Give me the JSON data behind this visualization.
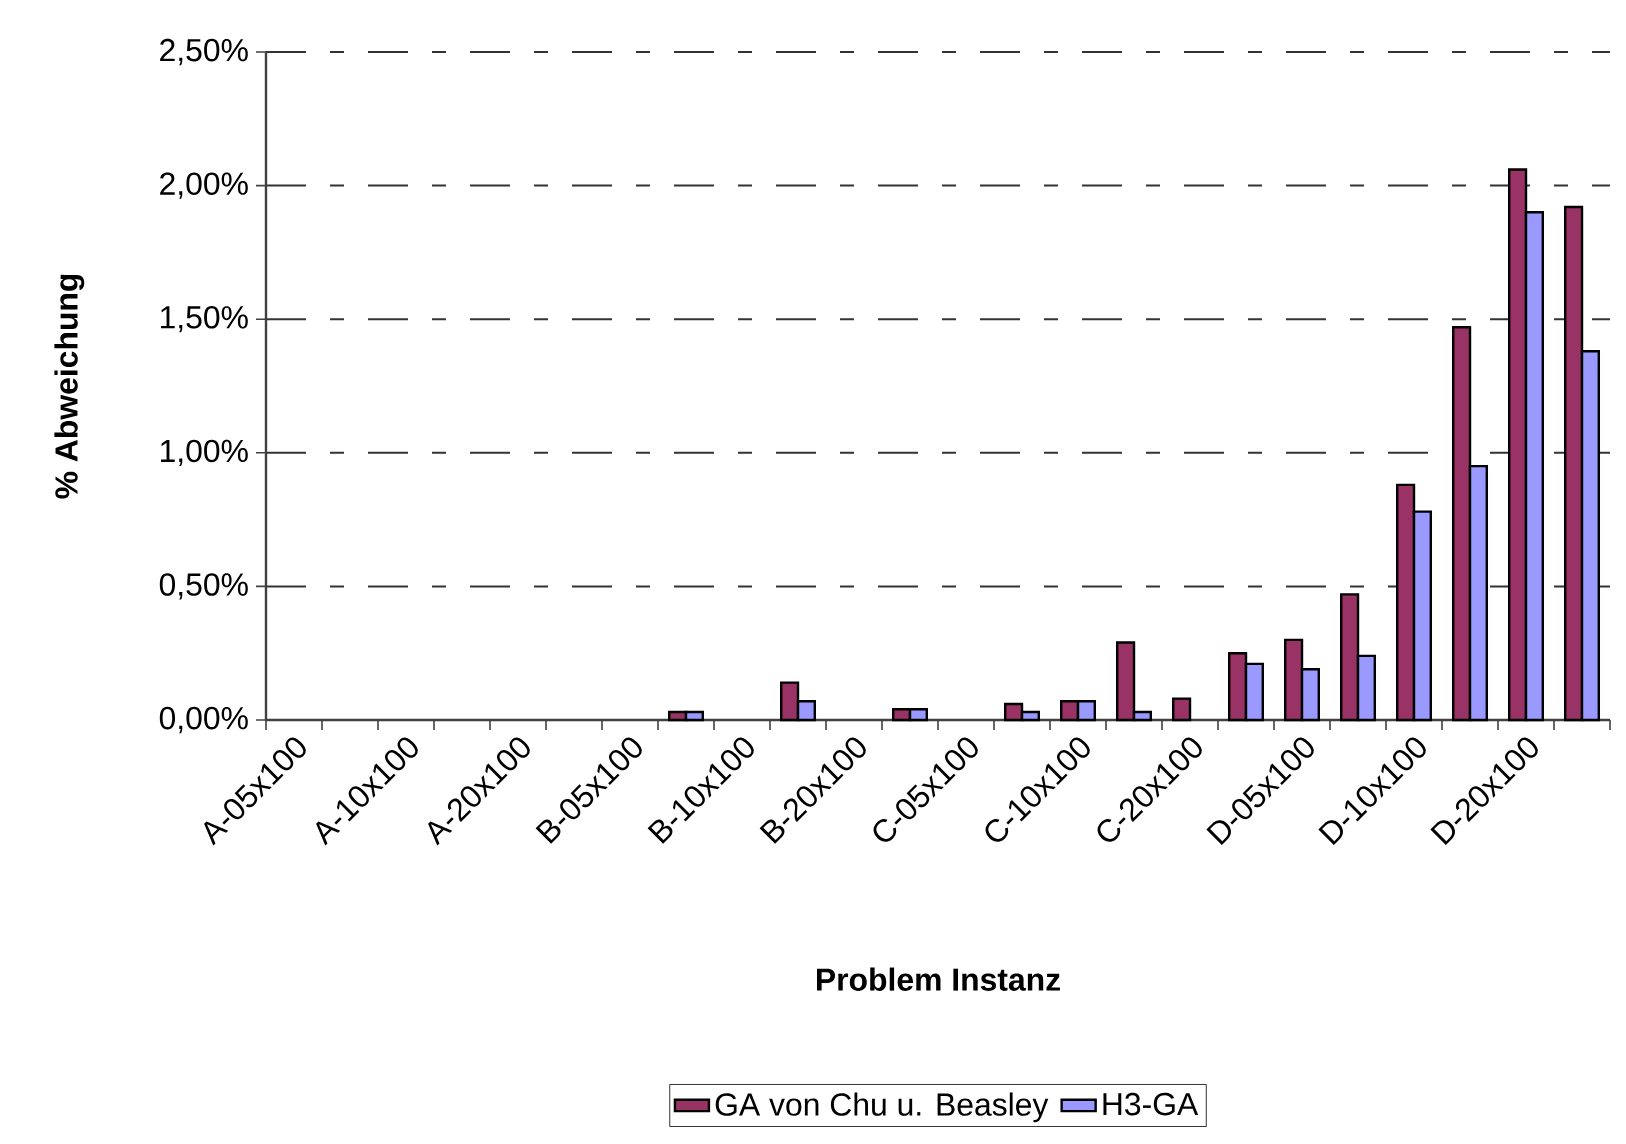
{
  "chart_data": {
    "type": "bar",
    "xlabel": "Problem Instanz",
    "ylabel": "% Abweichung",
    "categories": [
      "A-05x100",
      null,
      "A-10x100",
      null,
      "A-20x100",
      null,
      "B-05x100",
      null,
      "B-10x100",
      null,
      "B-20x100",
      null,
      "C-05x100",
      null,
      "C-10x100",
      null,
      "C-20x100",
      null,
      "D-05x100",
      null,
      "D-10x100",
      null,
      "D-20x100",
      null
    ],
    "series": [
      {
        "name": "GA von Chu u. Beasley",
        "color": "#993366",
        "values": [
          null,
          null,
          null,
          null,
          null,
          null,
          null,
          0.03,
          null,
          0.14,
          null,
          0.04,
          null,
          0.06,
          0.07,
          0.29,
          0.08,
          0.25,
          0.3,
          0.47,
          0.88,
          1.47,
          2.06,
          1.92
        ]
      },
      {
        "name": "H3-GA",
        "color": "#9999ff",
        "values": [
          null,
          null,
          null,
          null,
          null,
          null,
          null,
          0.03,
          null,
          0.07,
          null,
          0.04,
          null,
          0.03,
          0.07,
          0.03,
          null,
          0.21,
          0.19,
          0.24,
          0.78,
          0.95,
          1.9,
          1.38
        ]
      }
    ],
    "ylim": [
      0,
      2.5
    ],
    "yticks": [
      {
        "value": 0,
        "label": "0,00%"
      },
      {
        "value": 0.5,
        "label": "0,50%"
      },
      {
        "value": 1.0,
        "label": "1,00%"
      },
      {
        "value": 1.5,
        "label": "1,50%"
      },
      {
        "value": 2.0,
        "label": "2,00%"
      },
      {
        "value": 2.5,
        "label": "2,50%"
      }
    ],
    "grid": "y",
    "legend": "bottom"
  }
}
